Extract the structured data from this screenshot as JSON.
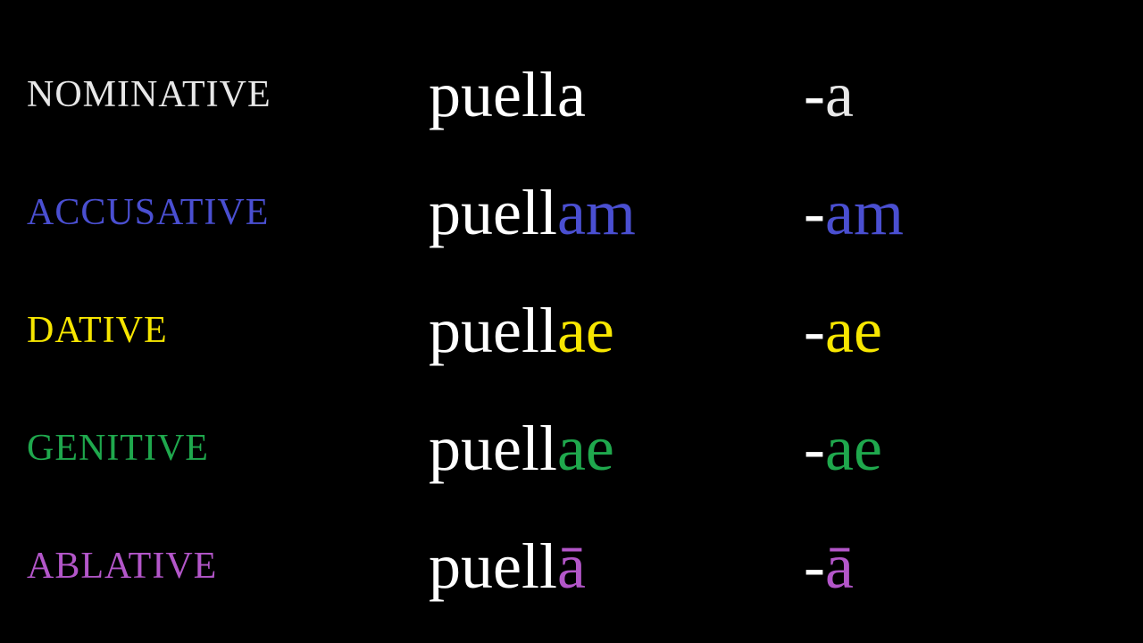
{
  "background_color": "#000000",
  "stem_color": "#ffffff",
  "case_label_fontsize": 42,
  "form_fontsize": 72,
  "rows": [
    {
      "key": "nominative",
      "case_label": "NOMINATIVE",
      "label_color": "#e8e8e8",
      "stem": "puella",
      "suffix": "",
      "suffix_color": "#e8e8e8",
      "dash": "-",
      "ending": "a",
      "ending_color": "#e8e8e8"
    },
    {
      "key": "accusative",
      "case_label": "ACCUSATIVE",
      "label_color": "#4a4fd1",
      "stem": "puell",
      "suffix": "am",
      "suffix_color": "#4a4fd1",
      "dash": "-",
      "ending": "am",
      "ending_color": "#4a4fd1"
    },
    {
      "key": "dative",
      "case_label": "DATIVE",
      "label_color": "#f7e600",
      "stem": "puell",
      "suffix": "ae",
      "suffix_color": "#f7e600",
      "dash": "-",
      "ending": "ae",
      "ending_color": "#f7e600"
    },
    {
      "key": "genitive",
      "case_label": "GENITIVE",
      "label_color": "#1fa84d",
      "stem": "puell",
      "suffix": "ae",
      "suffix_color": "#1fa84d",
      "dash": "-",
      "ending": "ae",
      "ending_color": "#1fa84d"
    },
    {
      "key": "ablative",
      "case_label": "ABLATIVE",
      "label_color": "#b356c9",
      "stem": "puell",
      "suffix": "ā",
      "suffix_color": "#b356c9",
      "dash": "-",
      "ending": "ā",
      "ending_color": "#b356c9"
    }
  ]
}
